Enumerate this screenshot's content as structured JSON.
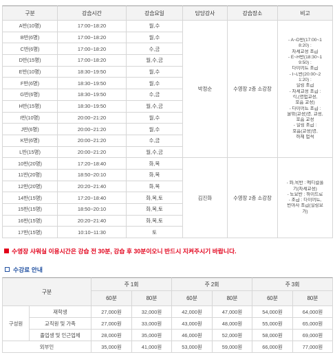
{
  "schedule": {
    "headers": {
      "category": "구분",
      "time": "강습시간",
      "days": "강습요일",
      "instructor": "담당강사",
      "location": "강습장소",
      "remarks": "비고"
    },
    "rows": [
      {
        "class": "A반(10명)",
        "time": "17:00~18:20",
        "days": "월,수"
      },
      {
        "class": "B반(6명)",
        "time": "17:00~18:20",
        "days": "월,수"
      },
      {
        "class": "C반(6명)",
        "time": "17:00~18:20",
        "days": "수,금"
      },
      {
        "class": "D반(15명)",
        "time": "17:00~18:20",
        "days": "월,수,금"
      },
      {
        "class": "E반(10명)",
        "time": "18:30~19:50",
        "days": "월,수"
      },
      {
        "class": "F반(6명)",
        "time": "18:30~19:50",
        "days": "월,수"
      },
      {
        "class": "G반(6명)",
        "time": "18:30~19:50",
        "days": "수,금"
      },
      {
        "class": "H반(15명)",
        "time": "18:30~19:50",
        "days": "월,수,금"
      },
      {
        "class": "I반(10명)",
        "time": "20:00~21:20",
        "days": "월,수"
      },
      {
        "class": "J반(6명)",
        "time": "20:00~21:20",
        "days": "월,수"
      },
      {
        "class": "K반(6명)",
        "time": "20:00~21:20",
        "days": "수,금"
      },
      {
        "class": "L반(15명)",
        "time": "20:00~21:20",
        "days": "월,수,금"
      },
      {
        "class": "10반(20명)",
        "time": "17:20~18:40",
        "days": "화,목"
      },
      {
        "class": "11반(20명)",
        "time": "18:50~20:10",
        "days": "화,목"
      },
      {
        "class": "12반(20명)",
        "time": "20:20~21:40",
        "days": "화,목"
      },
      {
        "class": "14반(15명)",
        "time": "17:20~18:40",
        "days": "화,목,토"
      },
      {
        "class": "15반(15명)",
        "time": "18:50~20:10",
        "days": "화,목,토"
      },
      {
        "class": "16반(15명)",
        "time": "20:20~21:40",
        "days": "화,목,토"
      },
      {
        "class": "17반(15명)",
        "time": "10:10~11:30",
        "days": "토"
      }
    ],
    "groups": [
      {
        "instructor": "박정순",
        "location": "수영장 2층 소강장",
        "note_lines": [
          "- A~D반(17:00~1",
          "8:20) :",
          "자세교정 초급",
          "- E~H반(18:30~1",
          "9:50) :",
          "다이어트 초급",
          "- I~L반(20:00~2",
          "1:20) :",
          "힐링 초급",
          "- 자세교정 초급 :",
          "킥,(영법교정,",
          "호흡 교정)",
          "- 다이어트 초급 :",
          "물밖(교정)영, 교정,",
          "호흡 교정",
          "- 힐링 초급 :",
          "호흡(교정)영,",
          "하체 법적"
        ]
      },
      {
        "instructor": "김진화",
        "location": "수영장 2층 소강장",
        "note_lines": [
          "- 화,목반 : 메디컬풀",
          "기(자세교정)",
          "- 토요반 : 하이드로",
          "- 초급 : 다이어트,",
          "빈야사 초급(힐링요",
          "가)"
        ]
      }
    ]
  },
  "notice": {
    "icon": "square-filled-icon",
    "text": "수영장 샤워실 이용시간은 강습 전 30분, 강습 후 30분이오니 반드시 지켜주시기 바랍니다."
  },
  "fee_section": {
    "icon": "square-outline-icon",
    "title": "수강료 안내"
  },
  "fee_table": {
    "header_category": "구분",
    "frequencies": [
      "주 1회",
      "주 2회",
      "주 3회"
    ],
    "durations": [
      "60분",
      "80분",
      "60분",
      "80분",
      "60분",
      "80분"
    ],
    "members": {
      "group": "구성원",
      "rows": [
        {
          "label": "재학생",
          "prices": [
            "27,000원",
            "32,000원",
            "42,000원",
            "47,000원",
            "54,000원",
            "64,000원"
          ]
        },
        {
          "label": "교직원 및 가족",
          "prices": [
            "27,000원",
            "33,000원",
            "43,000원",
            "48,000원",
            "55,000원",
            "65,000원"
          ]
        },
        {
          "label": "졸업생 및 인근업체",
          "prices": [
            "28,000원",
            "35,000원",
            "46,000원",
            "52,000원",
            "58,000원",
            "69,000원"
          ]
        }
      ]
    },
    "outsider": {
      "label": "외부인",
      "prices": [
        "35,000원",
        "41,000원",
        "53,000원",
        "59,000원",
        "66,000원",
        "77,000원"
      ]
    }
  },
  "colors": {
    "notice_red": "#e2001a",
    "section_blue": "#1f4fa0",
    "header_bg": "#f3f3f3",
    "border": "#d6d6d6",
    "text": "#4a4a4a"
  }
}
